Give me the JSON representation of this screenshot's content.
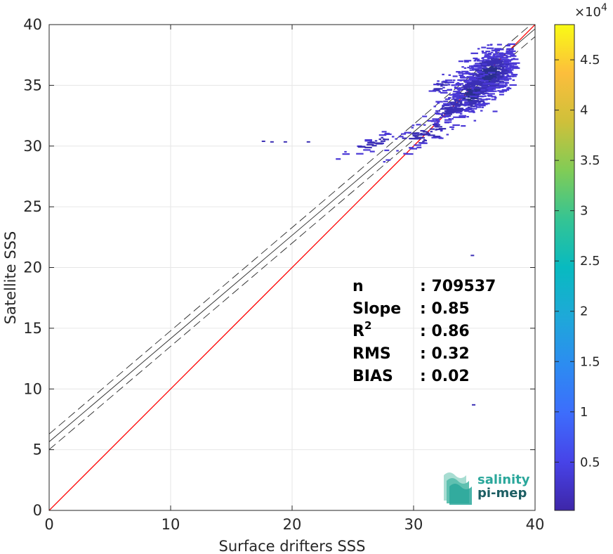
{
  "chart_data": {
    "type": "heatmap",
    "title": "",
    "xlabel": "Surface drifters SSS",
    "ylabel": "Satellite SSS",
    "xlim": [
      0,
      40
    ],
    "ylim": [
      0,
      40
    ],
    "xticks": [
      "0",
      "10",
      "20",
      "30",
      "40"
    ],
    "yticks": [
      "0",
      "5",
      "10",
      "15",
      "20",
      "25",
      "30",
      "35",
      "40"
    ],
    "grid": true,
    "one_to_one_line": {
      "color": "#ff0000",
      "x": [
        0,
        40
      ],
      "y": [
        0,
        40
      ]
    },
    "regression_line": {
      "slope": 0.85,
      "intercept": 5.65,
      "color": "#262626"
    },
    "regression_band": {
      "offset": 0.64,
      "style": "dashed"
    },
    "colorbar": {
      "multiplier_text": "×10",
      "multiplier_exp": "4",
      "ticks": [
        "0.5",
        "1",
        "1.5",
        "2",
        "2.5",
        "3",
        "3.5",
        "4",
        "4.5"
      ],
      "tick_values": [
        0.5,
        1,
        1.5,
        2,
        2.5,
        3,
        3.5,
        4,
        4.5
      ],
      "range": [
        0.02,
        4.85
      ],
      "colormap": "parula"
    },
    "density_clusters": [
      {
        "x": 36.0,
        "y": 36.0,
        "rx": 2.0,
        "ry": 1.8,
        "count": 520
      },
      {
        "x": 34.5,
        "y": 34.3,
        "rx": 1.6,
        "ry": 1.6,
        "count": 220
      },
      {
        "x": 33.0,
        "y": 33.2,
        "rx": 1.3,
        "ry": 0.9,
        "count": 90
      },
      {
        "x": 30.5,
        "y": 31.0,
        "rx": 2.5,
        "ry": 1.0,
        "count": 70
      },
      {
        "x": 26.5,
        "y": 30.3,
        "rx": 1.8,
        "ry": 0.5,
        "count": 35
      },
      {
        "x": 32.0,
        "y": 35.0,
        "rx": 1.0,
        "ry": 0.4,
        "count": 20
      }
    ],
    "isolated_points": [
      {
        "x": 17.5,
        "y": 30.45
      },
      {
        "x": 18.2,
        "y": 30.4
      },
      {
        "x": 19.3,
        "y": 30.4
      },
      {
        "x": 21.2,
        "y": 30.4
      },
      {
        "x": 34.7,
        "y": 21.05
      },
      {
        "x": 34.8,
        "y": 8.75
      }
    ],
    "stats": [
      {
        "label": "n",
        "value": ": 709537"
      },
      {
        "label": "Slope",
        "value": ": 0.85"
      },
      {
        "label": "R",
        "label_sup": "2",
        "value": ": 0.86"
      },
      {
        "label": "RMS",
        "value": ": 0.32"
      },
      {
        "label": "BIAS",
        "value": ": 0.02"
      }
    ]
  },
  "logo": {
    "line1": "salinity",
    "line2": "pi-mep",
    "color1": "#2aa79b",
    "color2": "#1c5e63"
  }
}
